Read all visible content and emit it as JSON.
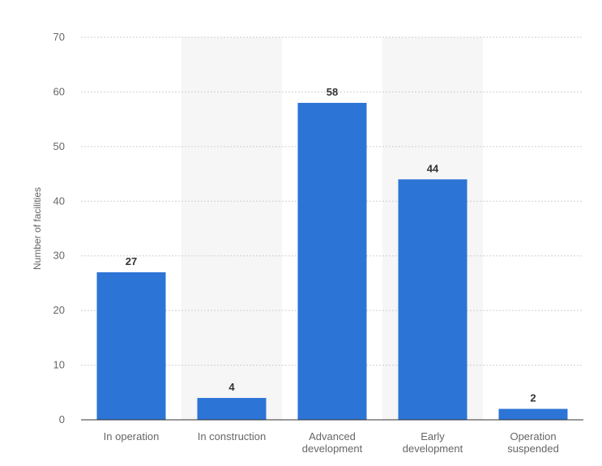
{
  "chart_data": {
    "type": "bar",
    "ylabel": "Number of facilities",
    "xlabel": "",
    "ylim": [
      0,
      70
    ],
    "yticks": [
      0,
      10,
      20,
      30,
      40,
      50,
      60,
      70
    ],
    "grid": true,
    "alternating_column_bands": true,
    "bar_color": "#2c74d6",
    "categories": [
      [
        "In operation"
      ],
      [
        "In construction"
      ],
      [
        "Advanced",
        "development"
      ],
      [
        "Early",
        "development"
      ],
      [
        "Operation",
        "suspended"
      ]
    ],
    "values": [
      27,
      4,
      58,
      44,
      2
    ]
  }
}
